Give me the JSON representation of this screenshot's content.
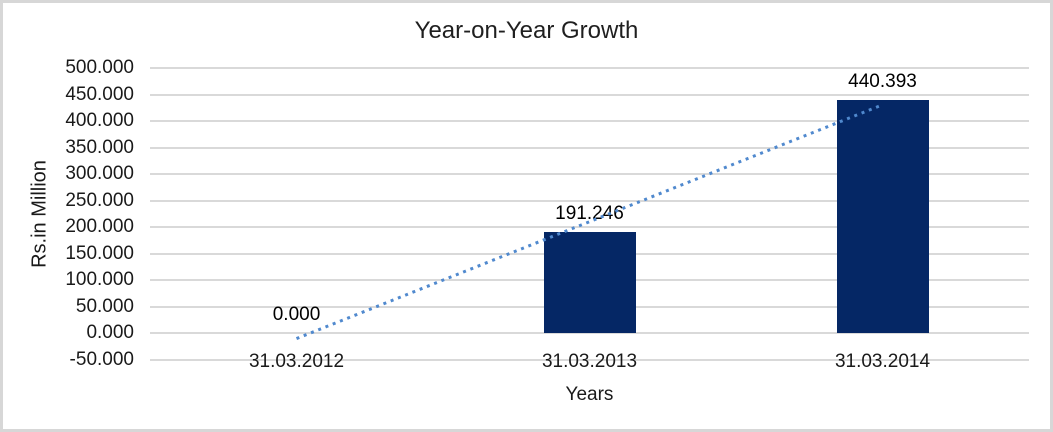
{
  "chart_data": {
    "type": "bar",
    "title": "Year-on-Year Growth",
    "xlabel": "Years",
    "ylabel": "Rs.in Million",
    "categories": [
      "31.03.2012",
      "31.03.2013",
      "31.03.2014"
    ],
    "values": [
      0.0,
      191.246,
      440.393
    ],
    "data_labels": [
      "0.000",
      "191.246",
      "440.393"
    ],
    "ytick_labels": [
      "500.000",
      "450.000",
      "400.000",
      "350.000",
      "300.000",
      "250.000",
      "200.000",
      "150.000",
      "100.000",
      "50.000",
      "0.000",
      "-50.000"
    ],
    "ylim": [
      -50,
      500
    ],
    "ytick_step": 50,
    "grid": true,
    "legend_position": "none",
    "bar_color": "#052765",
    "trendline": {
      "type": "linear",
      "style": "dotted",
      "color": "#5089CE"
    },
    "gridline_color": "#D9D9D9",
    "frame_color": "#D7D7D7"
  }
}
